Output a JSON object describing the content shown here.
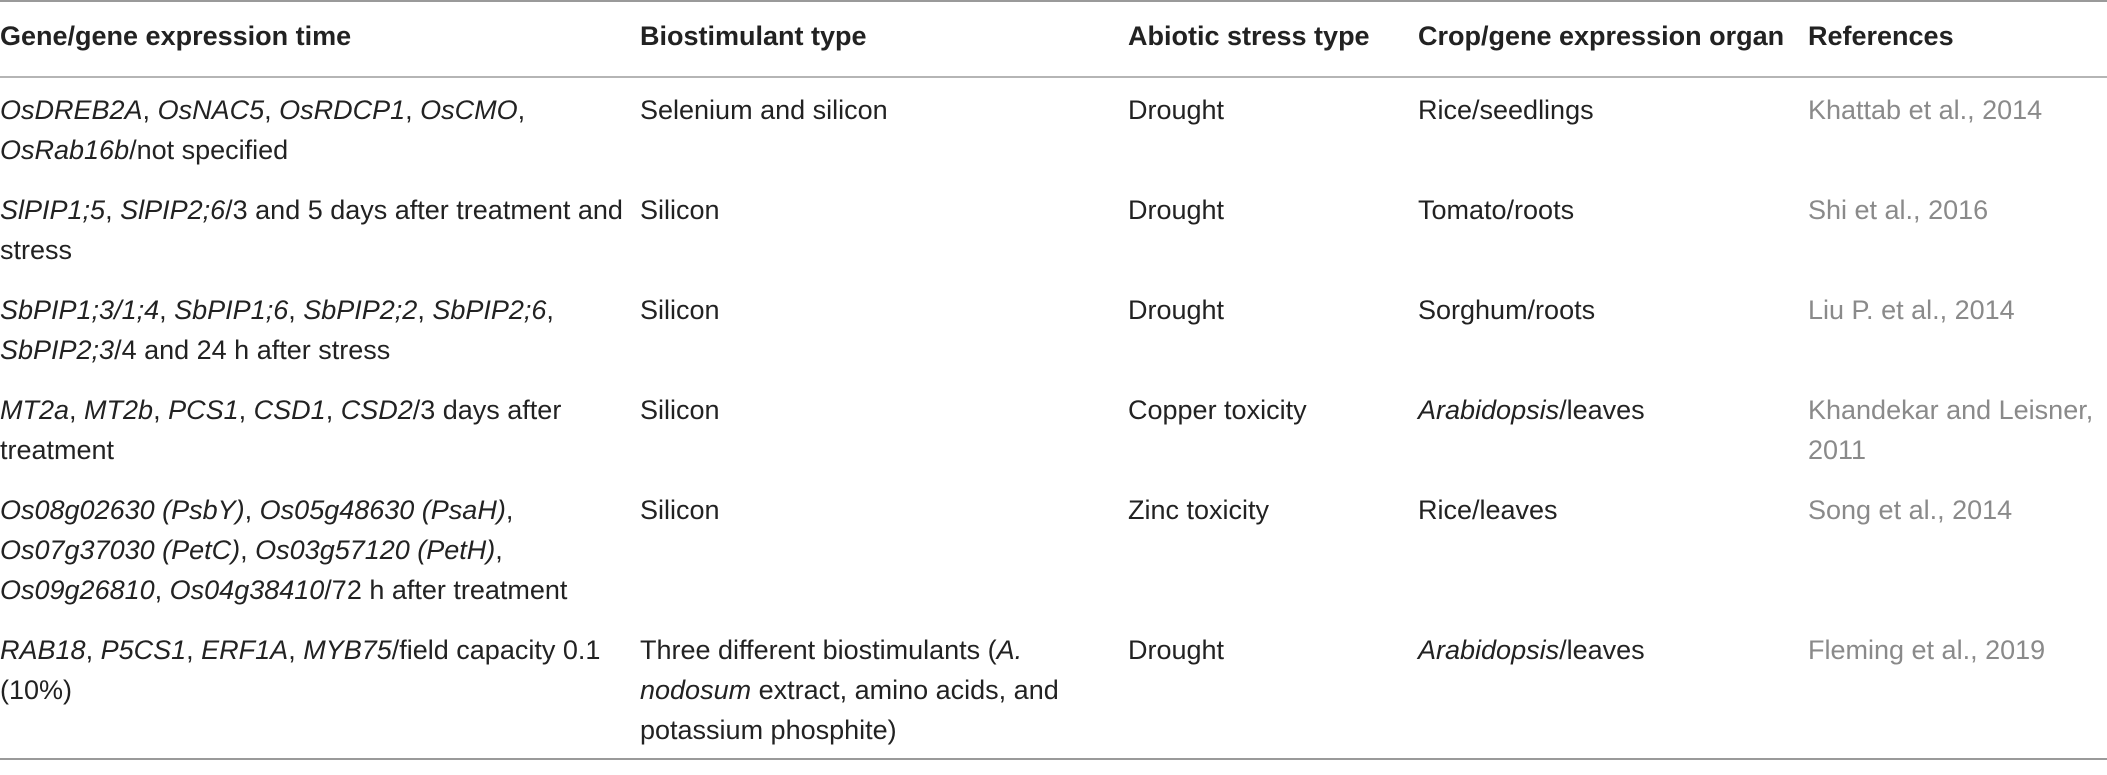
{
  "table": {
    "columns": [
      "Gene/gene expression time",
      "Biostimulant type",
      "Abiotic stress type",
      "Crop/gene expression organ",
      "References"
    ],
    "rows": [
      [
        [
          {
            "text": "OsDREB2A",
            "italic": true
          },
          {
            "text": ", "
          },
          {
            "text": "OsNAC5",
            "italic": true
          },
          {
            "text": ", "
          },
          {
            "text": "OsRDCP1",
            "italic": true
          },
          {
            "text": ", "
          },
          {
            "text": "OsCMO",
            "italic": true
          },
          {
            "text": ", "
          },
          {
            "text": "OsRab16b",
            "italic": true
          },
          {
            "text": "/not specified"
          }
        ],
        [
          {
            "text": "Selenium and silicon"
          }
        ],
        [
          {
            "text": "Drought"
          }
        ],
        [
          {
            "text": "Rice/seedlings"
          }
        ],
        [
          {
            "text": "Khattab et al., 2014"
          }
        ]
      ],
      [
        [
          {
            "text": "SlPIP1;5",
            "italic": true
          },
          {
            "text": ", "
          },
          {
            "text": "SlPIP2;6",
            "italic": true
          },
          {
            "text": "/3 and 5 days after treatment and stress"
          }
        ],
        [
          {
            "text": "Silicon"
          }
        ],
        [
          {
            "text": "Drought"
          }
        ],
        [
          {
            "text": "Tomato/roots"
          }
        ],
        [
          {
            "text": "Shi et al., 2016"
          }
        ]
      ],
      [
        [
          {
            "text": "SbPIP1;3/1;4",
            "italic": true
          },
          {
            "text": ", "
          },
          {
            "text": "SbPIP1;6",
            "italic": true
          },
          {
            "text": ", "
          },
          {
            "text": "SbPIP2;2",
            "italic": true
          },
          {
            "text": ", "
          },
          {
            "text": "SbPIP2;6",
            "italic": true
          },
          {
            "text": ", "
          },
          {
            "text": "SbPIP2;3",
            "italic": true
          },
          {
            "text": "/4 and 24 h after stress"
          }
        ],
        [
          {
            "text": "Silicon"
          }
        ],
        [
          {
            "text": "Drought"
          }
        ],
        [
          {
            "text": "Sorghum/roots"
          }
        ],
        [
          {
            "text": "Liu P. et al., 2014"
          }
        ]
      ],
      [
        [
          {
            "text": "MT2a",
            "italic": true
          },
          {
            "text": ", "
          },
          {
            "text": "MT2b",
            "italic": true
          },
          {
            "text": ", "
          },
          {
            "text": "PCS1",
            "italic": true
          },
          {
            "text": ", "
          },
          {
            "text": "CSD1",
            "italic": true
          },
          {
            "text": ", "
          },
          {
            "text": "CSD2",
            "italic": true
          },
          {
            "text": "/3 days after treatment"
          }
        ],
        [
          {
            "text": "Silicon"
          }
        ],
        [
          {
            "text": "Copper toxicity"
          }
        ],
        [
          {
            "text": "Arabidopsis",
            "italic": true
          },
          {
            "text": "/leaves"
          }
        ],
        [
          {
            "text": "Khandekar and Leisner, 2011"
          }
        ]
      ],
      [
        [
          {
            "text": "Os08g02630 (PsbY)",
            "italic": true
          },
          {
            "text": ", "
          },
          {
            "text": "Os05g48630 (PsaH)",
            "italic": true
          },
          {
            "text": ", "
          },
          {
            "text": "Os07g37030 (PetC)",
            "italic": true
          },
          {
            "text": ", "
          },
          {
            "text": "Os03g57120 (PetH)",
            "italic": true
          },
          {
            "text": ", "
          },
          {
            "text": "Os09g26810",
            "italic": true
          },
          {
            "text": ", "
          },
          {
            "text": "Os04g38410",
            "italic": true
          },
          {
            "text": "/72 h after treatment"
          }
        ],
        [
          {
            "text": "Silicon"
          }
        ],
        [
          {
            "text": "Zinc toxicity"
          }
        ],
        [
          {
            "text": "Rice/leaves"
          }
        ],
        [
          {
            "text": "Song et al., 2014"
          }
        ]
      ],
      [
        [
          {
            "text": "RAB18",
            "italic": true
          },
          {
            "text": ", "
          },
          {
            "text": "P5CS1",
            "italic": true
          },
          {
            "text": ", "
          },
          {
            "text": "ERF1A",
            "italic": true
          },
          {
            "text": ", "
          },
          {
            "text": "MYB75",
            "italic": true
          },
          {
            "text": "/field capacity 0.1 (10%)"
          }
        ],
        [
          {
            "text": "Three different biostimulants ("
          },
          {
            "text": "A. nodosum",
            "italic": true
          },
          {
            "text": " extract, amino acids, and potassium phosphite)"
          }
        ],
        [
          {
            "text": "Drought"
          }
        ],
        [
          {
            "text": "Arabidopsis",
            "italic": true
          },
          {
            "text": "/leaves"
          }
        ],
        [
          {
            "text": "Fleming et al., 2019"
          }
        ]
      ]
    ]
  }
}
